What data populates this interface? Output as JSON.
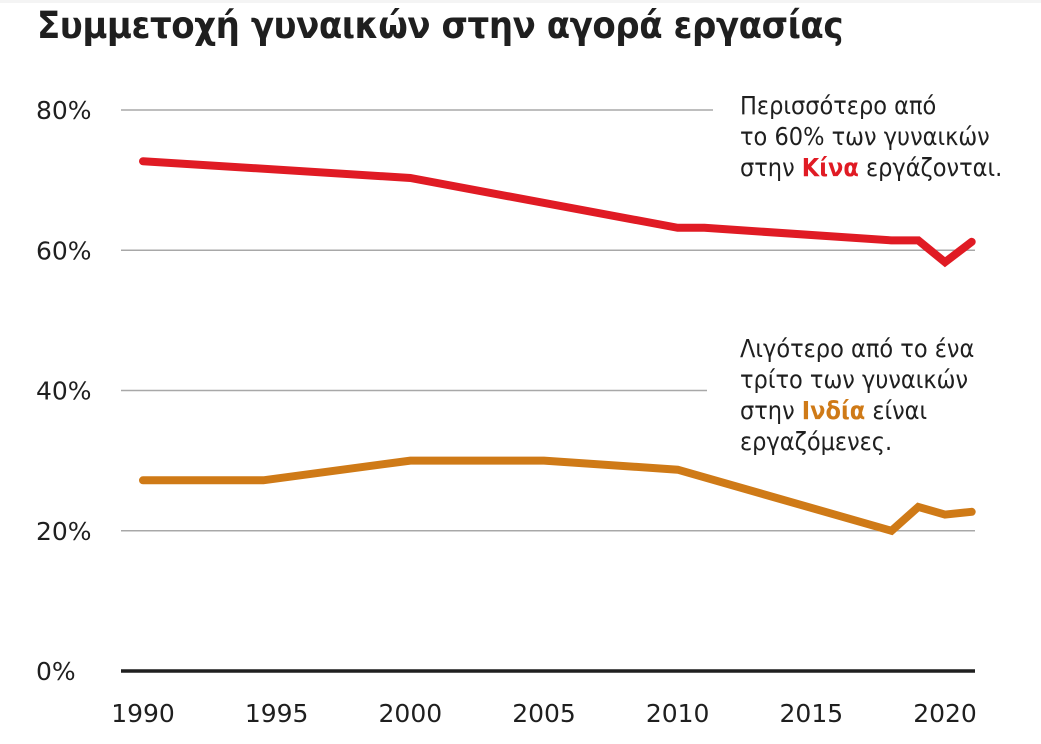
{
  "colors": {
    "china": "#e01b24",
    "india": "#cf7a17",
    "grid": "#a8a8a8",
    "axis": "#1f1f1f"
  },
  "title": "Συμμετοχή γυναικών στην αγορά εργασίας",
  "annotations": {
    "china": {
      "line1": "Περισσότερο από",
      "line2": "το 60% των γυναικών",
      "line3_pre": "στην ",
      "line3_hl": "Κίνα",
      "line3_post": " εργάζονται."
    },
    "india": {
      "line1": "Λιγότερο από το ένα",
      "line2": "τρίτο των γυναικών",
      "line3_pre": "στην ",
      "line3_hl": "Ινδία",
      "line3_post": " είναι",
      "line4": "εργαζόμενες."
    }
  },
  "chart_data": {
    "type": "line",
    "title": "Συμμετοχή γυναικών στην αγορά εργασίας",
    "xlabel": "",
    "ylabel": "",
    "xlim": [
      1990,
      2021
    ],
    "ylim": [
      0,
      80
    ],
    "grid": true,
    "x_ticks": [
      1990,
      1995,
      2000,
      2005,
      2010,
      2015,
      2020
    ],
    "x_tick_labels": [
      "1990",
      "1995",
      "2000",
      "2005",
      "2010",
      "2015",
      "2020"
    ],
    "y_ticks": [
      0,
      20,
      40,
      60,
      80
    ],
    "y_tick_labels": [
      "0%",
      "20%",
      "40%",
      "60%",
      "80%"
    ],
    "series": [
      {
        "name": "Κίνα",
        "color": "#e01b24",
        "x": [
          1990,
          2000,
          2010,
          2011,
          2018,
          2019,
          2020,
          2021
        ],
        "values": [
          72.7,
          70.3,
          63.2,
          63.2,
          61.4,
          61.4,
          58.3,
          61.2
        ]
      },
      {
        "name": "Ινδία",
        "color": "#cf7a17",
        "x": [
          1990,
          1994.5,
          2000,
          2005,
          2010,
          2018,
          2019,
          2020,
          2021
        ],
        "values": [
          27.2,
          27.2,
          30.0,
          30.0,
          28.7,
          20.0,
          23.4,
          22.3,
          22.7
        ]
      }
    ]
  }
}
